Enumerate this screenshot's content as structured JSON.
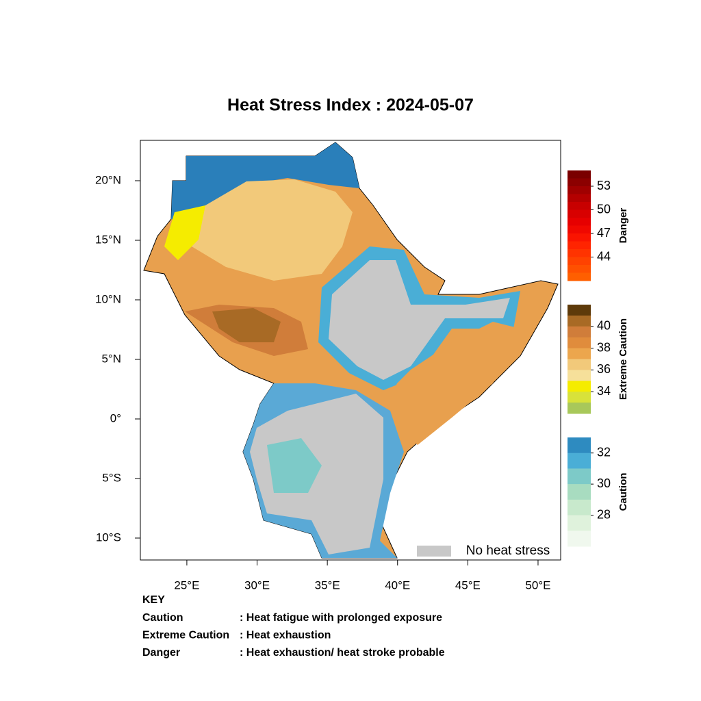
{
  "chart_data": {
    "type": "map",
    "title": "Heat Stress Index : 2024-05-07",
    "xlim": [
      21.69,
      51.61
    ],
    "ylim": [
      -11.84,
      23.39
    ],
    "xticks": [
      {
        "value": 25,
        "label": "25°E"
      },
      {
        "value": 30,
        "label": "30°E"
      },
      {
        "value": 35,
        "label": "35°E"
      },
      {
        "value": 40,
        "label": "40°E"
      },
      {
        "value": 45,
        "label": "45°E"
      },
      {
        "value": 50,
        "label": "50°E"
      }
    ],
    "yticks": [
      {
        "value": 20,
        "label": "20°N"
      },
      {
        "value": 15,
        "label": "15°N"
      },
      {
        "value": 10,
        "label": "10°N"
      },
      {
        "value": 5,
        "label": "5°N"
      },
      {
        "value": 0,
        "label": "0°"
      },
      {
        "value": -5,
        "label": "5°S"
      },
      {
        "value": -10,
        "label": "10°S"
      }
    ],
    "legend": {
      "label": "No heat stress",
      "color": "#c8c8c8"
    },
    "colorbars": [
      {
        "title": "Danger",
        "lim": [
          41,
          55
        ],
        "ticks": [
          53,
          50,
          47,
          44
        ],
        "colors": [
          "#7a0000",
          "#8c0000",
          "#a00000",
          "#b40000",
          "#c80000",
          "#d80000",
          "#e60000",
          "#f00800",
          "#fa1400",
          "#ff2400",
          "#ff3300",
          "#ff4200",
          "#ff5000",
          "#ff5f00"
        ]
      },
      {
        "title": "Extreme Caution",
        "lim": [
          32,
          42
        ],
        "ticks": [
          40,
          38,
          36,
          34
        ],
        "colors": [
          "#5e3a0a",
          "#a86a25",
          "#d07d3a",
          "#e08c3c",
          "#eca64d",
          "#f2c97a",
          "#f6e09a",
          "#f5ec00",
          "#d8e23a",
          "#a8c85a"
        ]
      },
      {
        "title": "Caution",
        "lim": [
          26,
          33
        ],
        "ticks": [
          32,
          30,
          28
        ],
        "colors": [
          "#2e8bc0",
          "#4aaed6",
          "#7dcac8",
          "#a8dcc0",
          "#c8e9cc",
          "#dff2dc",
          "#f0f8ee"
        ]
      }
    ],
    "key": {
      "title": "KEY",
      "items": [
        {
          "term": "Caution",
          "description": ": Heat fatigue with prolonged exposure"
        },
        {
          "term": "Extreme Caution",
          "description": " : Heat exhaustion"
        },
        {
          "term": "Danger",
          "description": ": Heat exhaustion/ heat stroke probable"
        }
      ]
    }
  }
}
